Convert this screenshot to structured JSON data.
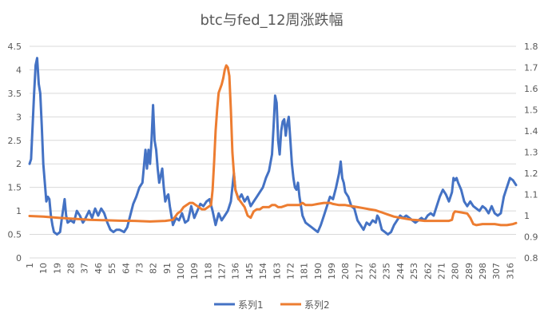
{
  "chart_data": {
    "type": "line",
    "title": "btc与fed_12周涨跌幅",
    "x_ticks": [
      "1",
      "10",
      "19",
      "28",
      "37",
      "46",
      "55",
      "64",
      "73",
      "82",
      "91",
      "100",
      "109",
      "118",
      "127",
      "136",
      "145",
      "154",
      "163",
      "172",
      "181",
      "190",
      "199",
      "208",
      "217",
      "226",
      "235",
      "244",
      "253",
      "262",
      "271",
      "280",
      "289",
      "298",
      "307",
      "316"
    ],
    "x_range": [
      1,
      320
    ],
    "y_left": {
      "ticks": [
        "0",
        "0.5",
        "1",
        "1.5",
        "2",
        "2.5",
        "3",
        "3.5",
        "4",
        "4.5"
      ],
      "lim": [
        0,
        4.5
      ]
    },
    "y_right": {
      "ticks": [
        "0.8",
        "0.9",
        "1",
        "1.1",
        "1.2",
        "1.3",
        "1.4",
        "1.5",
        "1.6",
        "1.7",
        "1.8"
      ],
      "lim": [
        0.8,
        1.8
      ]
    },
    "grid": true,
    "legend": {
      "placement": "bottom",
      "entries": [
        "系列1",
        "系列2"
      ]
    },
    "colors": {
      "series1": "#4472C4",
      "series2": "#ED7D31",
      "grid": "#D9D9D9",
      "text": "#595959"
    },
    "series": [
      {
        "name": "系列1",
        "axis": "left",
        "points": [
          [
            1,
            2.0
          ],
          [
            2,
            2.1
          ],
          [
            4,
            3.5
          ],
          [
            5,
            4.1
          ],
          [
            6,
            4.25
          ],
          [
            7,
            3.7
          ],
          [
            8,
            3.5
          ],
          [
            9,
            2.8
          ],
          [
            10,
            2.0
          ],
          [
            11,
            1.6
          ],
          [
            12,
            1.2
          ],
          [
            13,
            1.3
          ],
          [
            14,
            1.25
          ],
          [
            15,
            0.9
          ],
          [
            16,
            0.7
          ],
          [
            17,
            0.55
          ],
          [
            19,
            0.5
          ],
          [
            21,
            0.55
          ],
          [
            22,
            0.8
          ],
          [
            24,
            1.25
          ],
          [
            25,
            0.9
          ],
          [
            26,
            0.75
          ],
          [
            28,
            0.8
          ],
          [
            30,
            0.75
          ],
          [
            32,
            1.0
          ],
          [
            34,
            0.9
          ],
          [
            36,
            0.75
          ],
          [
            37,
            0.8
          ],
          [
            40,
            1.0
          ],
          [
            42,
            0.85
          ],
          [
            44,
            1.05
          ],
          [
            46,
            0.9
          ],
          [
            48,
            1.05
          ],
          [
            50,
            0.95
          ],
          [
            52,
            0.75
          ],
          [
            54,
            0.6
          ],
          [
            56,
            0.55
          ],
          [
            58,
            0.6
          ],
          [
            60,
            0.6
          ],
          [
            63,
            0.55
          ],
          [
            65,
            0.65
          ],
          [
            67,
            0.9
          ],
          [
            69,
            1.15
          ],
          [
            71,
            1.3
          ],
          [
            73,
            1.5
          ],
          [
            75,
            1.6
          ],
          [
            77,
            2.3
          ],
          [
            78,
            1.9
          ],
          [
            79,
            2.3
          ],
          [
            80,
            2.0
          ],
          [
            81,
            2.5
          ],
          [
            82,
            3.25
          ],
          [
            83,
            2.5
          ],
          [
            84,
            2.3
          ],
          [
            85,
            1.9
          ],
          [
            86,
            1.6
          ],
          [
            88,
            1.9
          ],
          [
            89,
            1.5
          ],
          [
            90,
            1.2
          ],
          [
            91,
            1.3
          ],
          [
            92,
            1.35
          ],
          [
            93,
            1.1
          ],
          [
            95,
            0.7
          ],
          [
            97,
            0.85
          ],
          [
            99,
            0.8
          ],
          [
            101,
            0.95
          ],
          [
            103,
            0.75
          ],
          [
            105,
            0.8
          ],
          [
            107,
            1.1
          ],
          [
            109,
            0.85
          ],
          [
            111,
            1.0
          ],
          [
            113,
            1.15
          ],
          [
            115,
            1.1
          ],
          [
            117,
            1.2
          ],
          [
            119,
            1.25
          ],
          [
            121,
            1.0
          ],
          [
            123,
            0.7
          ],
          [
            125,
            0.95
          ],
          [
            127,
            0.8
          ],
          [
            129,
            0.9
          ],
          [
            131,
            1.0
          ],
          [
            133,
            1.2
          ],
          [
            134,
            1.5
          ],
          [
            135,
            1.8
          ],
          [
            136,
            1.45
          ],
          [
            138,
            1.25
          ],
          [
            140,
            1.35
          ],
          [
            142,
            1.2
          ],
          [
            144,
            1.3
          ],
          [
            146,
            1.1
          ],
          [
            148,
            1.2
          ],
          [
            150,
            1.3
          ],
          [
            152,
            1.4
          ],
          [
            154,
            1.5
          ],
          [
            156,
            1.7
          ],
          [
            158,
            1.85
          ],
          [
            160,
            2.2
          ],
          [
            161,
            2.8
          ],
          [
            162,
            3.45
          ],
          [
            163,
            3.3
          ],
          [
            164,
            2.5
          ],
          [
            165,
            2.2
          ],
          [
            166,
            2.7
          ],
          [
            167,
            2.9
          ],
          [
            168,
            2.95
          ],
          [
            169,
            2.6
          ],
          [
            170,
            2.85
          ],
          [
            171,
            3.0
          ],
          [
            172,
            2.5
          ],
          [
            173,
            2.0
          ],
          [
            174,
            1.7
          ],
          [
            175,
            1.5
          ],
          [
            176,
            1.45
          ],
          [
            177,
            1.6
          ],
          [
            178,
            1.3
          ],
          [
            180,
            0.9
          ],
          [
            182,
            0.75
          ],
          [
            184,
            0.7
          ],
          [
            186,
            0.65
          ],
          [
            188,
            0.6
          ],
          [
            190,
            0.55
          ],
          [
            192,
            0.7
          ],
          [
            194,
            0.9
          ],
          [
            196,
            1.1
          ],
          [
            198,
            1.3
          ],
          [
            200,
            1.25
          ],
          [
            202,
            1.5
          ],
          [
            204,
            1.8
          ],
          [
            205,
            2.05
          ],
          [
            206,
            1.7
          ],
          [
            207,
            1.6
          ],
          [
            208,
            1.4
          ],
          [
            210,
            1.3
          ],
          [
            212,
            1.1
          ],
          [
            214,
            1.05
          ],
          [
            216,
            0.8
          ],
          [
            218,
            0.7
          ],
          [
            220,
            0.6
          ],
          [
            222,
            0.75
          ],
          [
            224,
            0.7
          ],
          [
            226,
            0.8
          ],
          [
            228,
            0.75
          ],
          [
            229,
            0.9
          ],
          [
            230,
            0.85
          ],
          [
            232,
            0.6
          ],
          [
            234,
            0.55
          ],
          [
            236,
            0.5
          ],
          [
            238,
            0.55
          ],
          [
            240,
            0.7
          ],
          [
            242,
            0.8
          ],
          [
            244,
            0.9
          ],
          [
            246,
            0.85
          ],
          [
            248,
            0.9
          ],
          [
            250,
            0.85
          ],
          [
            252,
            0.8
          ],
          [
            254,
            0.75
          ],
          [
            256,
            0.8
          ],
          [
            258,
            0.85
          ],
          [
            260,
            0.8
          ],
          [
            262,
            0.9
          ],
          [
            264,
            0.95
          ],
          [
            266,
            0.9
          ],
          [
            268,
            1.1
          ],
          [
            270,
            1.3
          ],
          [
            272,
            1.45
          ],
          [
            274,
            1.35
          ],
          [
            276,
            1.2
          ],
          [
            278,
            1.4
          ],
          [
            279,
            1.7
          ],
          [
            280,
            1.65
          ],
          [
            281,
            1.7
          ],
          [
            282,
            1.6
          ],
          [
            284,
            1.45
          ],
          [
            286,
            1.2
          ],
          [
            288,
            1.1
          ],
          [
            290,
            1.2
          ],
          [
            292,
            1.1
          ],
          [
            294,
            1.05
          ],
          [
            296,
            1.0
          ],
          [
            298,
            1.1
          ],
          [
            300,
            1.05
          ],
          [
            302,
            0.95
          ],
          [
            304,
            1.1
          ],
          [
            306,
            0.95
          ],
          [
            308,
            0.9
          ],
          [
            310,
            0.95
          ],
          [
            312,
            1.3
          ],
          [
            314,
            1.5
          ],
          [
            316,
            1.7
          ],
          [
            318,
            1.65
          ],
          [
            320,
            1.55
          ]
        ]
      },
      {
        "name": "系列2",
        "axis": "right",
        "points": [
          [
            1,
            0.998
          ],
          [
            10,
            0.995
          ],
          [
            20,
            0.99
          ],
          [
            30,
            0.985
          ],
          [
            40,
            0.98
          ],
          [
            50,
            0.978
          ],
          [
            60,
            0.976
          ],
          [
            70,
            0.975
          ],
          [
            80,
            0.972
          ],
          [
            90,
            0.975
          ],
          [
            95,
            0.98
          ],
          [
            98,
            1.01
          ],
          [
            100,
            1.02
          ],
          [
            102,
            1.04
          ],
          [
            104,
            1.05
          ],
          [
            106,
            1.06
          ],
          [
            108,
            1.06
          ],
          [
            110,
            1.05
          ],
          [
            112,
            1.04
          ],
          [
            114,
            1.03
          ],
          [
            116,
            1.03
          ],
          [
            118,
            1.04
          ],
          [
            120,
            1.05
          ],
          [
            121,
            1.12
          ],
          [
            122,
            1.25
          ],
          [
            123,
            1.4
          ],
          [
            124,
            1.5
          ],
          [
            125,
            1.58
          ],
          [
            126,
            1.6
          ],
          [
            127,
            1.62
          ],
          [
            128,
            1.65
          ],
          [
            129,
            1.69
          ],
          [
            130,
            1.71
          ],
          [
            131,
            1.7
          ],
          [
            132,
            1.66
          ],
          [
            133,
            1.5
          ],
          [
            134,
            1.3
          ],
          [
            135,
            1.2
          ],
          [
            136,
            1.12
          ],
          [
            138,
            1.08
          ],
          [
            140,
            1.06
          ],
          [
            142,
            1.04
          ],
          [
            144,
            1.0
          ],
          [
            146,
            0.99
          ],
          [
            148,
            1.02
          ],
          [
            150,
            1.03
          ],
          [
            152,
            1.03
          ],
          [
            154,
            1.04
          ],
          [
            156,
            1.04
          ],
          [
            158,
            1.04
          ],
          [
            160,
            1.05
          ],
          [
            162,
            1.05
          ],
          [
            164,
            1.04
          ],
          [
            166,
            1.04
          ],
          [
            170,
            1.05
          ],
          [
            174,
            1.05
          ],
          [
            178,
            1.05
          ],
          [
            180,
            1.06
          ],
          [
            182,
            1.05
          ],
          [
            186,
            1.05
          ],
          [
            190,
            1.055
          ],
          [
            194,
            1.06
          ],
          [
            198,
            1.06
          ],
          [
            200,
            1.055
          ],
          [
            204,
            1.05
          ],
          [
            208,
            1.05
          ],
          [
            212,
            1.045
          ],
          [
            216,
            1.04
          ],
          [
            220,
            1.035
          ],
          [
            224,
            1.03
          ],
          [
            228,
            1.025
          ],
          [
            232,
            1.015
          ],
          [
            236,
            1.005
          ],
          [
            240,
            0.995
          ],
          [
            244,
            0.99
          ],
          [
            248,
            0.985
          ],
          [
            252,
            0.98
          ],
          [
            256,
            0.978
          ],
          [
            260,
            0.975
          ],
          [
            264,
            0.975
          ],
          [
            268,
            0.975
          ],
          [
            272,
            0.975
          ],
          [
            276,
            0.975
          ],
          [
            278,
            0.98
          ],
          [
            279,
            1.01
          ],
          [
            280,
            1.02
          ],
          [
            284,
            1.015
          ],
          [
            288,
            1.01
          ],
          [
            290,
            0.99
          ],
          [
            292,
            0.96
          ],
          [
            294,
            0.955
          ],
          [
            298,
            0.96
          ],
          [
            302,
            0.96
          ],
          [
            306,
            0.96
          ],
          [
            310,
            0.955
          ],
          [
            314,
            0.955
          ],
          [
            318,
            0.96
          ],
          [
            320,
            0.965
          ]
        ]
      }
    ]
  }
}
